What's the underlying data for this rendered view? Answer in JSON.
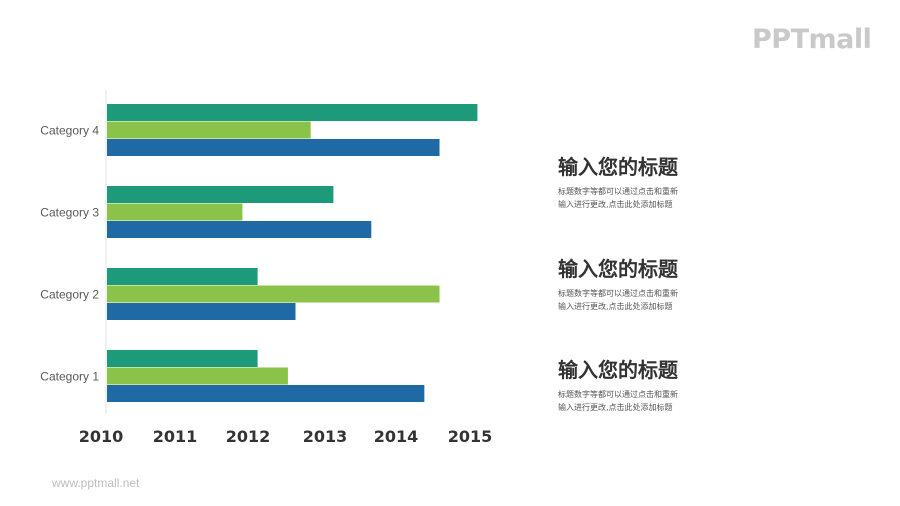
{
  "logo": {
    "text": "PPTmall"
  },
  "footer": {
    "url": "www.pptmall.net"
  },
  "colors": {
    "series1": "#1c9a79",
    "series2": "#8bc34a",
    "series3": "#1f6aa5"
  },
  "chart_data": {
    "type": "bar",
    "orientation": "horizontal",
    "categories": [
      "Category 4",
      "Category 3",
      "Category 2",
      "Category 1"
    ],
    "series": [
      {
        "values": [
          2014.9,
          2013.0,
          2012.0,
          2012.0
        ]
      },
      {
        "values": [
          2012.7,
          2011.8,
          2014.4,
          2012.4
        ]
      },
      {
        "values": [
          2014.4,
          2013.5,
          2012.5,
          2014.2
        ]
      }
    ],
    "xlim": [
      2010,
      2015
    ],
    "xticks": [
      "2010",
      "2011",
      "2012",
      "2013",
      "2014",
      "2015"
    ],
    "grid": false
  },
  "blocks": [
    {
      "title": "输入您的标题",
      "line1": "标题数字等都可以通过点击和重新",
      "line2": "输入进行更改,点击此处添加标题"
    },
    {
      "title": "输入您的标题",
      "line1": "标题数字等都可以通过点击和重新",
      "line2": "输入进行更改,点击此处添加标题"
    },
    {
      "title": "输入您的标题",
      "line1": "标题数字等都可以通过点击和重新",
      "line2": "输入进行更改,点击此处添加标题"
    }
  ]
}
